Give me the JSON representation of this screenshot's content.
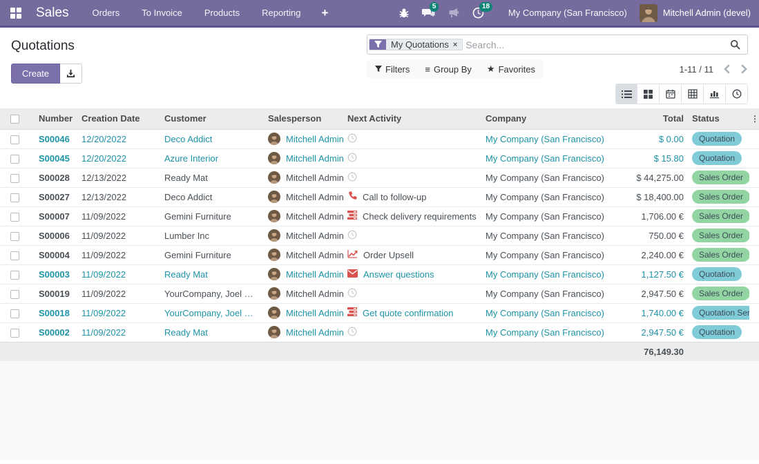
{
  "colors": {
    "topbar": "#756c9d",
    "accent_button": "#7c70ac",
    "link_teal": "#1d94a6",
    "badge_teal": "#0c8577",
    "status_quotation_bg": "#7fcbd8",
    "status_sales_order_bg": "#92d5a2",
    "activity_red": "#d9534f"
  },
  "topbar": {
    "app_name": "Sales",
    "menu_items": [
      {
        "label": "Orders"
      },
      {
        "label": "To Invoice"
      },
      {
        "label": "Products"
      },
      {
        "label": "Reporting"
      }
    ],
    "plus_label": "+",
    "systray": {
      "messages_count": "5",
      "activities_count": "18",
      "company": "My Company (San Francisco)",
      "user": "Mitchell Admin (devel)"
    }
  },
  "control_panel": {
    "title": "Quotations",
    "create_label": "Create",
    "search": {
      "facet": "My Quotations",
      "facet_close": "×",
      "placeholder": "Search..."
    },
    "filter_buttons": {
      "filters": "Filters",
      "group_by": "Group By",
      "favorites": "Favorites"
    },
    "pager": "1-11 / 11",
    "dots": "⋮",
    "group_by_glyph": "≡",
    "star_glyph": "★"
  },
  "table": {
    "headers": [
      "Number",
      "Creation Date",
      "Customer",
      "Salesperson",
      "Next Activity",
      "Company",
      "Total",
      "Status"
    ],
    "salesperson_default": "Mitchell Admin",
    "rows": [
      {
        "number": "S00046",
        "date": "12/20/2022",
        "customer": "Deco Addict",
        "salesperson": "Mitchell Admin",
        "activity_icon": "clock",
        "activity_label": "",
        "company": "My Company (San Francisco)",
        "total": "$ 0.00",
        "status": "Quotation",
        "teal": true
      },
      {
        "number": "S00045",
        "date": "12/20/2022",
        "customer": "Azure Interior",
        "salesperson": "Mitchell Admin",
        "activity_icon": "clock",
        "activity_label": "",
        "company": "My Company (San Francisco)",
        "total": "$ 15.80",
        "status": "Quotation",
        "teal": true
      },
      {
        "number": "S00028",
        "date": "12/13/2022",
        "customer": "Ready Mat",
        "salesperson": "Mitchell Admin",
        "activity_icon": "clock",
        "activity_label": "",
        "company": "My Company (San Francisco)",
        "total": "$ 44,275.00",
        "status": "Sales Order",
        "teal": false
      },
      {
        "number": "S00027",
        "date": "12/13/2022",
        "customer": "Deco Addict",
        "salesperson": "Mitchell Admin",
        "activity_icon": "phone",
        "activity_label": "Call to follow-up",
        "company": "My Company (San Francisco)",
        "total": "$ 18,400.00",
        "status": "Sales Order",
        "teal": false
      },
      {
        "number": "S00007",
        "date": "11/09/2022",
        "customer": "Gemini Furniture",
        "salesperson": "Mitchell Admin",
        "activity_icon": "tasks",
        "activity_label": "Check delivery requirements",
        "company": "My Company (San Francisco)",
        "total": "1,706.00 €",
        "status": "Sales Order",
        "teal": false
      },
      {
        "number": "S00006",
        "date": "11/09/2022",
        "customer": "Lumber Inc",
        "salesperson": "Mitchell Admin",
        "activity_icon": "clock",
        "activity_label": "",
        "company": "My Company (San Francisco)",
        "total": "750.00 €",
        "status": "Sales Order",
        "teal": false
      },
      {
        "number": "S00004",
        "date": "11/09/2022",
        "customer": "Gemini Furniture",
        "salesperson": "Mitchell Admin",
        "activity_icon": "chart",
        "activity_label": "Order Upsell",
        "company": "My Company (San Francisco)",
        "total": "2,240.00 €",
        "status": "Sales Order",
        "teal": false
      },
      {
        "number": "S00003",
        "date": "11/09/2022",
        "customer": "Ready Mat",
        "salesperson": "Mitchell Admin",
        "activity_icon": "envelope",
        "activity_label": "Answer questions",
        "company": "My Company (San Francisco)",
        "total": "1,127.50 €",
        "status": "Quotation",
        "teal": true
      },
      {
        "number": "S00019",
        "date": "11/09/2022",
        "customer": "YourCompany, Joel Willis",
        "salesperson": "Mitchell Admin",
        "activity_icon": "clock",
        "activity_label": "",
        "company": "My Company (San Francisco)",
        "total": "2,947.50 €",
        "status": "Sales Order",
        "teal": false
      },
      {
        "number": "S00018",
        "date": "11/09/2022",
        "customer": "YourCompany, Joel Willis",
        "salesperson": "Mitchell Admin",
        "activity_icon": "tasks",
        "activity_label": "Get quote confirmation",
        "company": "My Company (San Francisco)",
        "total": "1,740.00 €",
        "status": "Quotation Sent",
        "teal": true
      },
      {
        "number": "S00002",
        "date": "11/09/2022",
        "customer": "Ready Mat",
        "salesperson": "Mitchell Admin",
        "activity_icon": "clock",
        "activity_label": "",
        "company": "My Company (San Francisco)",
        "total": "2,947.50 €",
        "status": "Quotation",
        "teal": true
      }
    ],
    "footer_total": "76,149.30"
  }
}
